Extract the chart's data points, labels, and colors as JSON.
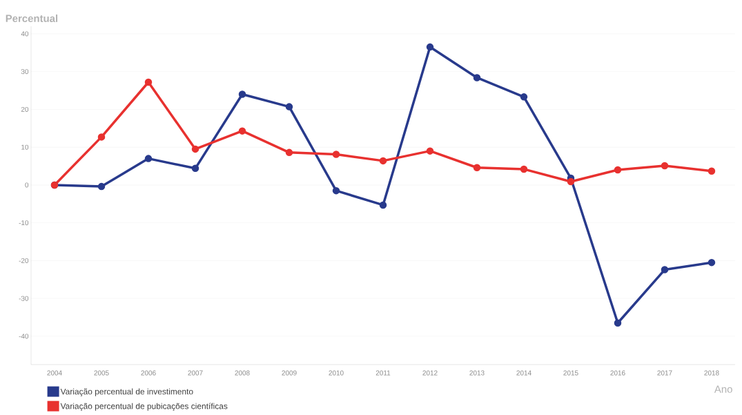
{
  "chart_data": {
    "type": "line",
    "ylabel": "Percentual",
    "xlabel": "Ano",
    "categories": [
      "2004",
      "2005",
      "2006",
      "2007",
      "2008",
      "2009",
      "2010",
      "2011",
      "2012",
      "2013",
      "2014",
      "2015",
      "2016",
      "2017",
      "2018"
    ],
    "series": [
      {
        "name": "Variação percentual de investimento",
        "color": "#283a8c",
        "values": [
          0,
          -0.4,
          7,
          4.4,
          24,
          20.7,
          -1.5,
          -5.3,
          36.5,
          28.4,
          23.3,
          1.8,
          -36.5,
          -22.4,
          -20.5
        ]
      },
      {
        "name": "Variação percentual de pubicações científicas",
        "color": "#e8312f",
        "values": [
          0,
          12.7,
          27.2,
          9.5,
          14.3,
          8.6,
          8.1,
          6.4,
          9,
          4.6,
          4.2,
          0.9,
          4,
          5.1,
          3.7
        ]
      }
    ],
    "ylim": [
      -47.5,
      42
    ],
    "yticks": [
      -40,
      -30,
      -20,
      -10,
      0,
      10,
      20,
      30,
      40
    ],
    "grid": "y",
    "legend": "bottom",
    "marker": "circle",
    "line_style": "solid"
  }
}
